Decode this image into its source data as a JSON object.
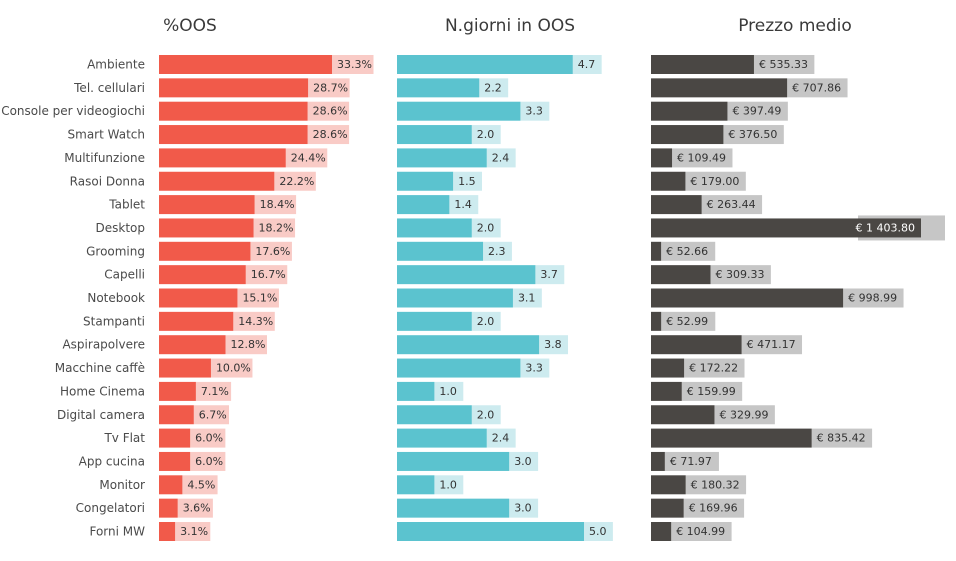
{
  "chart_data": {
    "type": "bar",
    "orientation": "horizontal",
    "categories": [
      "Ambiente",
      "Tel. cellulari",
      "Console per videogiochi",
      "Smart Watch",
      "Multifunzione",
      "Rasoi Donna",
      "Tablet",
      "Desktop",
      "Grooming",
      "Capelli",
      "Notebook",
      "Stampanti",
      "Aspirapolvere",
      "Macchine caffè",
      "Home Cinema",
      "Digital camera",
      "Tv Flat",
      "App cucina",
      "Monitor",
      "Congelatori",
      "Forni MW"
    ],
    "series": [
      {
        "name": "%OOS",
        "values": [
          33.3,
          28.7,
          28.6,
          28.6,
          24.4,
          22.2,
          18.4,
          18.2,
          17.6,
          16.7,
          15.1,
          14.3,
          12.8,
          10.0,
          7.1,
          6.7,
          6.0,
          6.0,
          4.5,
          3.6,
          3.1
        ],
        "labels": [
          "33.3%",
          "28.7%",
          "28.6%",
          "28.6%",
          "24.4%",
          "22.2%",
          "18.4%",
          "18.2%",
          "17.6%",
          "16.7%",
          "15.1%",
          "14.3%",
          "12.8%",
          "10.0%",
          "7.1%",
          "6.7%",
          "6.0%",
          "6.0%",
          "4.5%",
          "3.6%",
          "3.1%"
        ],
        "color": "#f15a4a",
        "label_bg": "#f9cbc6"
      },
      {
        "name": "N.giorni in OOS",
        "values": [
          4.7,
          2.2,
          3.3,
          2.0,
          2.4,
          1.5,
          1.4,
          2.0,
          2.3,
          3.7,
          3.1,
          2.0,
          3.8,
          3.3,
          1.0,
          2.0,
          2.4,
          3.0,
          1.0,
          3.0,
          5.0
        ],
        "labels": [
          "4.7",
          "2.2",
          "3.3",
          "2.0",
          "2.4",
          "1.5",
          "1.4",
          "2.0",
          "2.3",
          "3.7",
          "3.1",
          "2.0",
          "3.8",
          "3.3",
          "1.0",
          "2.0",
          "2.4",
          "3.0",
          "1.0",
          "3.0",
          "5.0"
        ],
        "color": "#5bc3cf",
        "label_bg": "#cdebef"
      },
      {
        "name": "Prezzo medio",
        "values": [
          535.33,
          707.86,
          397.49,
          376.5,
          109.49,
          179.0,
          263.44,
          1403.8,
          52.66,
          309.33,
          998.99,
          52.99,
          471.17,
          172.22,
          159.99,
          329.99,
          835.42,
          71.97,
          180.32,
          169.96,
          104.99
        ],
        "labels": [
          "€ 535.33",
          "€ 707.86",
          "€ 397.49",
          "€ 376.50",
          "€ 109.49",
          "€ 179.00",
          "€ 263.44",
          "€ 1 403.80",
          "€ 52.66",
          "€ 309.33",
          "€ 998.99",
          "€ 52.99",
          "€ 471.17",
          "€ 172.22",
          "€ 159.99",
          "€ 329.99",
          "€ 835.42",
          "€ 71.97",
          "€ 180.32",
          "€ 169.96",
          "€ 104.99"
        ],
        "color": "#4a4744",
        "label_bg": "#c6c6c6"
      }
    ],
    "grid": false,
    "legend": "none"
  }
}
